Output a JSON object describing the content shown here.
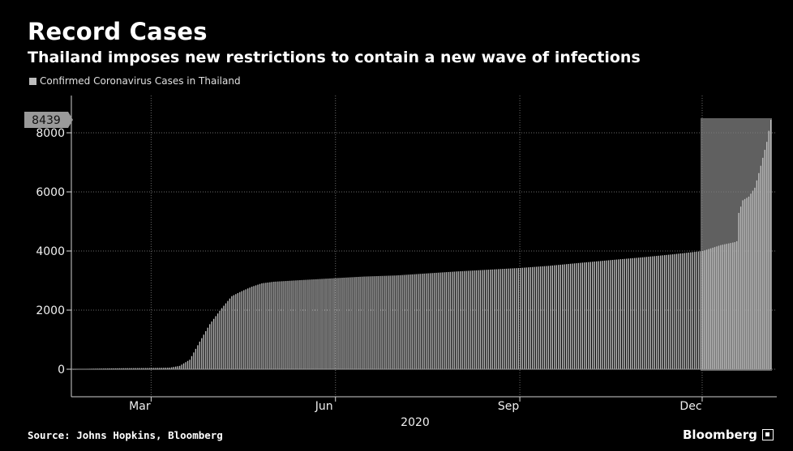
{
  "header": {
    "title": "Record Cases",
    "subtitle": "Thailand imposes new restrictions to contain a new wave of infections"
  },
  "footer": {
    "source": "Source: Johns Hopkins, Bloomberg",
    "brand": "Bloomberg"
  },
  "colors": {
    "background": "#000000",
    "bar": "#c0c0c0",
    "highlight": "#808080",
    "text": "#ffffff"
  },
  "chart_data": {
    "type": "bar",
    "title": "Record Cases",
    "subtitle": "Thailand imposes new restrictions to contain a new wave of infections",
    "legend": {
      "entries": [
        "Confirmed Coronavirus Cases in Thailand"
      ],
      "placement": "top-left"
    },
    "xlabel": "2020",
    "ylabel": "",
    "ylim": [
      0,
      8800
    ],
    "xlim": [
      "2020-01-22",
      "2021-01-04"
    ],
    "yticks": [
      0,
      2000,
      4000,
      6000,
      8000
    ],
    "xticks": [
      {
        "label": "Mar",
        "date": "2020-03-01"
      },
      {
        "label": "Jun",
        "date": "2020-06-01"
      },
      {
        "label": "Sep",
        "date": "2020-09-01"
      },
      {
        "label": "Dec",
        "date": "2020-12-01"
      }
    ],
    "grid": true,
    "callout": {
      "label": "8439",
      "value": 8439
    },
    "highlight_range": [
      "2020-12-01",
      "2021-01-04"
    ],
    "series": [
      {
        "name": "Confirmed Coronavirus Cases in Thailand",
        "points": [
          [
            "2020-01-22",
            4
          ],
          [
            "2020-02-01",
            19
          ],
          [
            "2020-02-15",
            34
          ],
          [
            "2020-03-01",
            42
          ],
          [
            "2020-03-10",
            53
          ],
          [
            "2020-03-15",
            114
          ],
          [
            "2020-03-20",
            322
          ],
          [
            "2020-03-25",
            934
          ],
          [
            "2020-03-30",
            1524
          ],
          [
            "2020-04-05",
            2067
          ],
          [
            "2020-04-10",
            2473
          ],
          [
            "2020-04-15",
            2643
          ],
          [
            "2020-04-20",
            2792
          ],
          [
            "2020-04-25",
            2907
          ],
          [
            "2020-05-01",
            2960
          ],
          [
            "2020-05-15",
            3017
          ],
          [
            "2020-06-01",
            3083
          ],
          [
            "2020-06-15",
            3135
          ],
          [
            "2020-07-01",
            3173
          ],
          [
            "2020-07-15",
            3236
          ],
          [
            "2020-08-01",
            3311
          ],
          [
            "2020-08-15",
            3364
          ],
          [
            "2020-09-01",
            3427
          ],
          [
            "2020-09-15",
            3497
          ],
          [
            "2020-10-01",
            3600
          ],
          [
            "2020-10-15",
            3686
          ],
          [
            "2020-11-01",
            3787
          ],
          [
            "2020-11-15",
            3880
          ],
          [
            "2020-12-01",
            4000
          ],
          [
            "2020-12-10",
            4200
          ],
          [
            "2020-12-17",
            4300
          ],
          [
            "2020-12-18",
            4331
          ],
          [
            "2020-12-19",
            5289
          ],
          [
            "2020-12-21",
            5716
          ],
          [
            "2020-12-24",
            5840
          ],
          [
            "2020-12-27",
            6141
          ],
          [
            "2020-12-30",
            6884
          ],
          [
            "2021-01-02",
            7694
          ],
          [
            "2021-01-04",
            8439
          ]
        ]
      }
    ]
  }
}
